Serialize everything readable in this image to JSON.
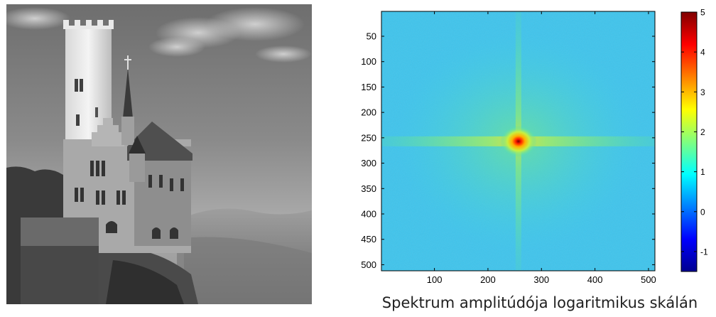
{
  "figure": {
    "caption": "Spektrum amplitúdója logaritmikus skálán"
  },
  "image_panel": {
    "subject": "grayscale photo of a castle with a tall round tower on a rocky cliff, misty valley and cloudy sky"
  },
  "chart_data": {
    "type": "heatmap",
    "title": "",
    "xlabel": "",
    "ylabel": "",
    "xlim": [
      1,
      512
    ],
    "ylim": [
      1,
      512
    ],
    "y_inverted": true,
    "x_ticks": [
      100,
      200,
      300,
      400,
      500
    ],
    "y_ticks": [
      50,
      100,
      150,
      200,
      250,
      300,
      350,
      400,
      450,
      500
    ],
    "center": [
      257,
      257
    ],
    "colorbar": {
      "min": -1.5,
      "max": 5,
      "ticks": [
        -1,
        0,
        1,
        2,
        3,
        4,
        5
      ],
      "colormap": "jet",
      "placement": "right"
    },
    "approx_levels": {
      "background": 0.8,
      "cross_arms": 1.6,
      "center_peak": 5
    },
    "grid": false
  }
}
